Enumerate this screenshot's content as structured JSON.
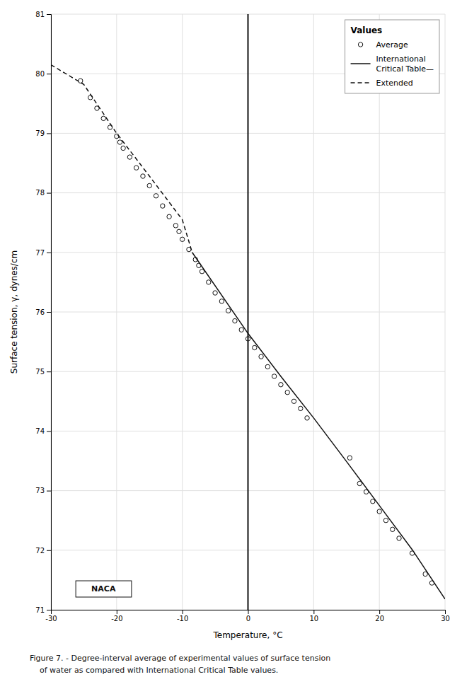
{
  "chart_data": {
    "type": "scatter",
    "xlabel": "Temperature, °C",
    "ylabel": "Surface tension, γ, dynes/cm",
    "xlim": [
      -30,
      30
    ],
    "ylim": [
      71,
      81
    ],
    "xticks": [
      -30,
      -20,
      -10,
      0,
      10,
      20,
      30
    ],
    "yticks": [
      71,
      72,
      73,
      74,
      75,
      76,
      77,
      78,
      79,
      80,
      81
    ],
    "grid": true,
    "legend": "upper right",
    "legend_title": "Values",
    "vline_x": 0,
    "annotations": [
      {
        "text": "NACA",
        "x": -22,
        "y": 71.35
      }
    ],
    "caption": [
      "Figure 7. - Degree-interval average of experimental values of surface tension",
      "    of water as compared with International Critical Table values."
    ],
    "series": [
      {
        "name": "Average",
        "type": "scatter",
        "marker": "circle",
        "color": "#111111",
        "x": [
          -25.5,
          -24,
          -23,
          -22,
          -21,
          -20,
          -19.5,
          -19,
          -18,
          -17,
          -16,
          -15,
          -14,
          -13,
          -12,
          -11,
          -10.5,
          -10,
          -9,
          -8,
          -7.5,
          -7,
          -6,
          -5,
          -4,
          -3,
          -2,
          -1,
          0,
          1,
          2,
          3,
          4,
          5,
          6,
          7,
          8,
          9,
          15.5,
          17,
          18,
          19,
          20,
          21,
          22,
          23,
          25,
          27,
          28
        ],
        "values": [
          79.88,
          79.6,
          79.42,
          79.25,
          79.1,
          78.95,
          78.85,
          78.75,
          78.6,
          78.42,
          78.28,
          78.12,
          77.95,
          77.78,
          77.6,
          77.45,
          77.35,
          77.22,
          77.05,
          76.88,
          76.78,
          76.68,
          76.5,
          76.32,
          76.18,
          76.02,
          75.85,
          75.7,
          75.55,
          75.4,
          75.25,
          75.08,
          74.92,
          74.78,
          74.65,
          74.5,
          74.38,
          74.22,
          73.55,
          73.12,
          72.98,
          72.82,
          72.65,
          72.5,
          72.35,
          72.2,
          71.95,
          71.6,
          71.45
        ]
      },
      {
        "name": "International\nCritical Table—",
        "type": "line",
        "line_style": "solid",
        "color": "#111111",
        "x": [
          -8.5,
          0,
          5,
          10,
          15,
          20,
          25,
          30
        ],
        "values": [
          77.0,
          75.64,
          74.92,
          74.22,
          73.49,
          72.75,
          72.01,
          71.18
        ]
      },
      {
        "name": "Extended",
        "type": "line",
        "line_style": "dashed",
        "color": "#111111",
        "x": [
          -30,
          -25,
          -20,
          -15,
          -10,
          -8.5
        ],
        "values": [
          80.15,
          79.82,
          79.0,
          78.28,
          77.55,
          77.0
        ]
      }
    ]
  }
}
